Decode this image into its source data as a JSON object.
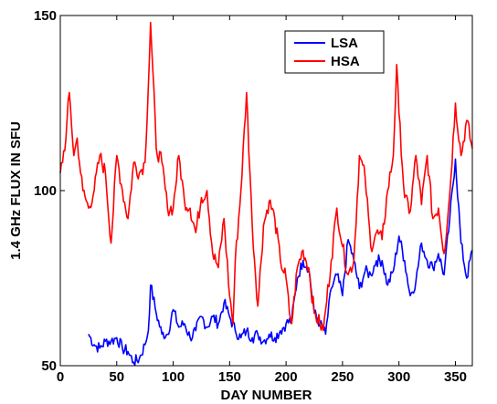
{
  "chart_data": {
    "type": "line",
    "xlabel": "DAY NUMBER",
    "ylabel": "1.4 GHz FLUX IN SFU",
    "xlim": [
      0,
      365
    ],
    "ylim": [
      50,
      150
    ],
    "xticks": [
      "0",
      "50",
      "100",
      "150",
      "200",
      "250",
      "300",
      "350"
    ],
    "yticks": [
      "50",
      "100",
      "150"
    ],
    "grid": false,
    "legend_position": "top-center",
    "series": [
      {
        "name": "LSA",
        "color": "#0000ff",
        "x": [
          25,
          30,
          35,
          40,
          45,
          50,
          55,
          60,
          65,
          70,
          75,
          78,
          80,
          85,
          90,
          95,
          100,
          105,
          110,
          115,
          120,
          125,
          130,
          135,
          140,
          145,
          150,
          155,
          160,
          165,
          170,
          175,
          180,
          185,
          190,
          195,
          200,
          205,
          210,
          215,
          220,
          225,
          230,
          235,
          240,
          245,
          250,
          255,
          260,
          265,
          270,
          275,
          280,
          285,
          290,
          295,
          300,
          305,
          310,
          315,
          320,
          325,
          330,
          335,
          340,
          345,
          350,
          355,
          360,
          365
        ],
        "y": [
          59,
          56,
          55,
          57,
          57,
          58,
          55,
          54,
          51,
          52,
          56,
          60,
          73,
          65,
          59,
          59,
          66,
          61,
          62,
          58,
          60,
          64,
          61,
          64,
          62,
          68,
          64,
          60,
          58,
          60,
          58,
          59,
          57,
          59,
          58,
          60,
          62,
          63,
          75,
          80,
          78,
          65,
          62,
          59,
          72,
          76,
          70,
          86,
          80,
          72,
          77,
          76,
          80,
          80,
          73,
          77,
          87,
          80,
          70,
          74,
          85,
          80,
          78,
          82,
          76,
          92,
          109,
          85,
          75,
          83
        ]
      },
      {
        "name": "HSA",
        "color": "#ff0000",
        "x": [
          0,
          5,
          8,
          12,
          15,
          18,
          20,
          25,
          30,
          35,
          40,
          45,
          50,
          55,
          60,
          65,
          70,
          75,
          78,
          80,
          85,
          90,
          95,
          100,
          105,
          110,
          115,
          120,
          125,
          130,
          135,
          140,
          145,
          150,
          153,
          155,
          160,
          165,
          170,
          175,
          180,
          185,
          190,
          195,
          200,
          203,
          205,
          210,
          215,
          220,
          225,
          230,
          233,
          235,
          240,
          245,
          250,
          255,
          260,
          265,
          270,
          275,
          280,
          285,
          290,
          295,
          298,
          300,
          305,
          310,
          315,
          320,
          325,
          330,
          335,
          340,
          345,
          350,
          355,
          360,
          365
        ],
        "y": [
          105,
          115,
          128,
          110,
          115,
          105,
          100,
          95,
          100,
          110,
          105,
          85,
          110,
          100,
          92,
          108,
          105,
          108,
          130,
          148,
          112,
          108,
          95,
          95,
          110,
          97,
          95,
          88,
          98,
          100,
          82,
          78,
          92,
          70,
          62,
          80,
          100,
          128,
          90,
          67,
          90,
          97,
          92,
          80,
          75,
          65,
          62,
          78,
          83,
          78,
          65,
          62,
          60,
          66,
          80,
          95,
          84,
          76,
          80,
          110,
          104,
          84,
          88,
          86,
          100,
          110,
          136,
          122,
          98,
          94,
          110,
          96,
          110,
          92,
          95,
          82,
          99,
          125,
          110,
          120,
          112
        ]
      }
    ]
  }
}
